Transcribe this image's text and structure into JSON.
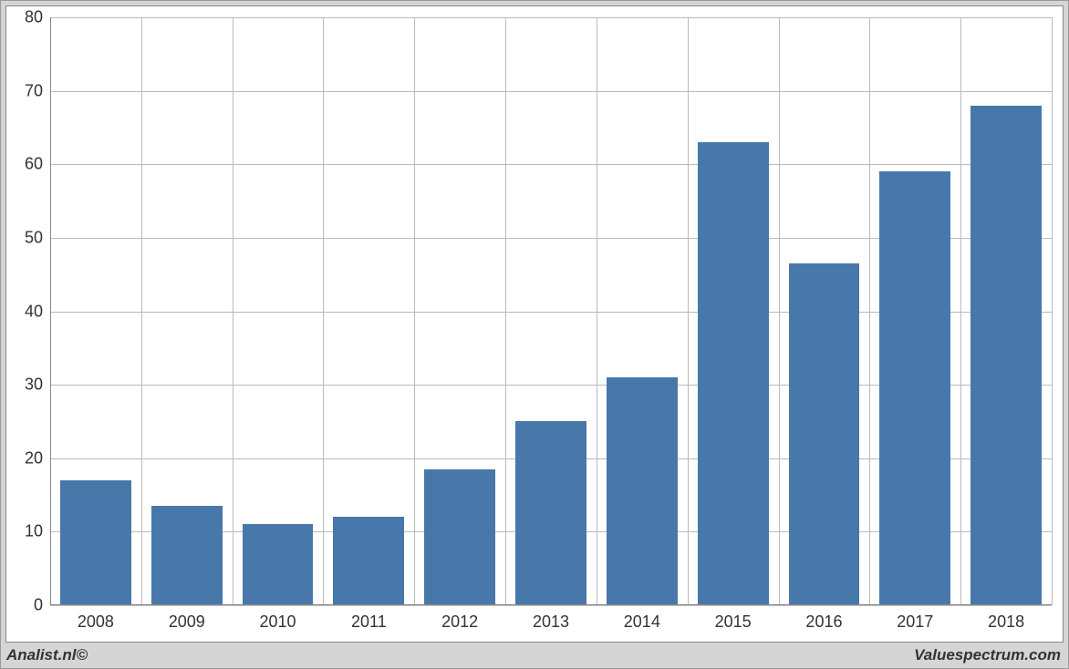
{
  "chart": {
    "type": "bar",
    "categories": [
      "2008",
      "2009",
      "2010",
      "2011",
      "2012",
      "2013",
      "2014",
      "2015",
      "2016",
      "2017",
      "2018"
    ],
    "values": [
      17,
      13.5,
      11,
      12,
      18.5,
      25,
      31,
      63,
      46.5,
      59,
      68
    ],
    "bar_color": "#4878a9",
    "background_color": "#ffffff",
    "outer_background": "#d5d5d5",
    "grid_color": "#bbbbbb",
    "border_color": "#888888",
    "ylim": [
      0,
      80
    ],
    "ytick_step": 10,
    "yticks": [
      0,
      10,
      20,
      30,
      40,
      50,
      60,
      70,
      80
    ],
    "bar_width_ratio": 0.78,
    "label_fontsize": 18,
    "label_color": "#333333"
  },
  "footer": {
    "left": "Analist.nl©",
    "right": "Valuespectrum.com"
  }
}
